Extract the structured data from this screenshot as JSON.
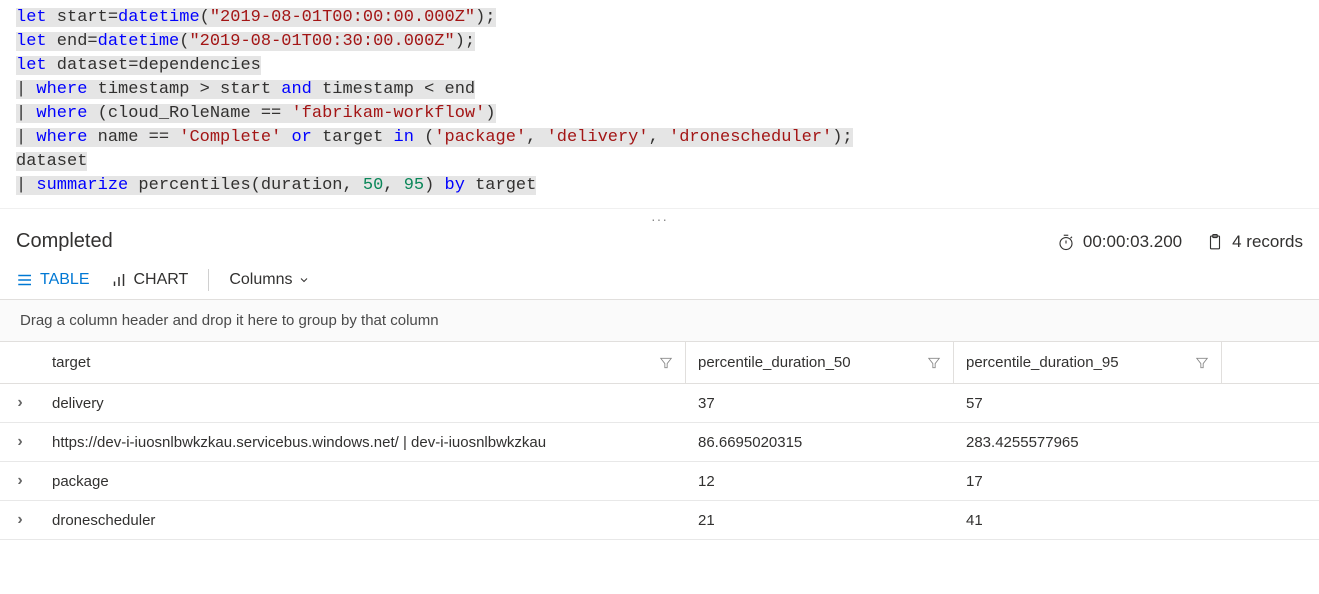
{
  "code": {
    "line1": {
      "let": "let",
      "_s1": " start=",
      "fn": "datetime",
      "_o": "(",
      "str": "\"2019-08-01T00:00:00.000Z\"",
      "_c": ");"
    },
    "line2": {
      "let": "let",
      "_s1": " end=",
      "fn": "datetime",
      "_o": "(",
      "str": "\"2019-08-01T00:30:00.000Z\"",
      "_c": ");"
    },
    "line3": {
      "let": "let",
      "_s1": " dataset=dependencies"
    },
    "line4": {
      "pipe": "| ",
      "where": "where",
      "_s1": " timestamp > start ",
      "and": "and",
      "_s2": " timestamp < end"
    },
    "line5": {
      "pipe": "| ",
      "where": "where",
      "_s1": " (cloud_RoleName == ",
      "str": "'fabrikam-workflow'",
      "_c": ")"
    },
    "line6": {
      "pipe": "| ",
      "where": "where",
      "_s1": " name == ",
      "str1": "'Complete'",
      "_s2": " ",
      "or": "or",
      "_s3": " target ",
      "in": "in",
      "_s4": " (",
      "str2": "'package'",
      "_c1": ", ",
      "str3": "'delivery'",
      "_c2": ", ",
      "str4": "'dronescheduler'",
      "_c3": ");"
    },
    "line7": {
      "_s1": "dataset"
    },
    "line8": {
      "pipe": "| ",
      "summarize": "summarize",
      "_s1": " percentiles(duration, ",
      "n1": "50",
      "_c1": ", ",
      "n2": "95",
      "_c2": ") ",
      "by": "by",
      "_s2": " target"
    }
  },
  "status": {
    "completed": "Completed",
    "duration": "00:00:03.200",
    "records": "4 records"
  },
  "toolbar": {
    "table": "TABLE",
    "chart": "CHART",
    "columns": "Columns"
  },
  "groupHint": "Drag a column header and drop it here to group by that column",
  "columns": {
    "target": "target",
    "p50": "percentile_duration_50",
    "p95": "percentile_duration_95"
  },
  "rows": [
    {
      "target": "delivery",
      "p50": "37",
      "p95": "57"
    },
    {
      "target": "https://dev-i-iuosnlbwkzkau.servicebus.windows.net/ | dev-i-iuosnlbwkzkau",
      "p50": "86.6695020315",
      "p95": "283.4255577965"
    },
    {
      "target": "package",
      "p50": "12",
      "p95": "17"
    },
    {
      "target": "dronescheduler",
      "p50": "21",
      "p95": "41"
    }
  ],
  "colors": {
    "keyword": "#0000ff",
    "string": "#a31515",
    "number": "#098658",
    "highlight": "#e5e5e5",
    "accent": "#0078d4",
    "border": "#e1dfdd",
    "text": "#323130"
  }
}
